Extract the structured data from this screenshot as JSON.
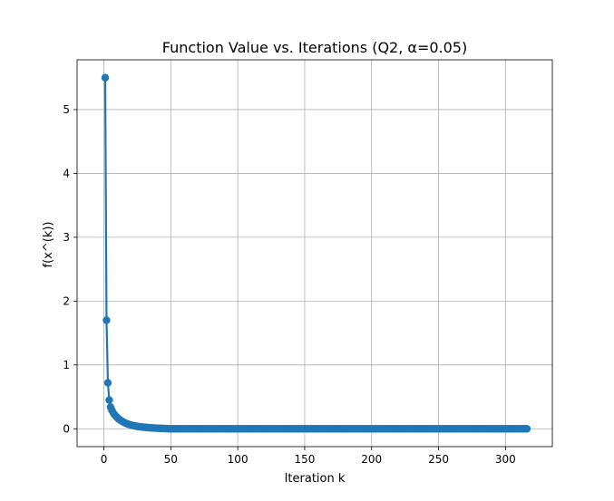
{
  "chart_data": {
    "type": "line",
    "title": "Function Value vs. Iterations (Q2, α=0.05)",
    "xlabel": "Iteration k",
    "ylabel": "f(x^(k))",
    "xlim": [
      -20,
      335
    ],
    "ylim": [
      -0.28,
      5.78
    ],
    "xticks": [
      0,
      50,
      100,
      150,
      200,
      250,
      300
    ],
    "yticks": [
      0,
      1,
      2,
      3,
      4,
      5
    ],
    "grid": true,
    "legend": "none",
    "series": [
      {
        "color": "#1f77b4",
        "markers": true,
        "x_start": 1,
        "x_end": 316,
        "head_values": [
          5.5,
          1.7,
          0.72,
          0.45,
          0.34,
          0.29,
          0.25,
          0.22,
          0.195,
          0.175,
          0.155,
          0.14,
          0.125,
          0.112,
          0.1,
          0.09,
          0.081,
          0.073,
          0.066,
          0.06,
          0.054,
          0.049,
          0.045,
          0.041,
          0.037,
          0.034,
          0.031,
          0.028,
          0.026,
          0.024,
          0.022,
          0.02,
          0.018,
          0.016,
          0.015,
          0.013,
          0.012,
          0.011,
          0.01,
          0.009,
          0.008,
          0.007,
          0.006,
          0.005,
          0.004,
          0.003,
          0.002,
          0.001
        ],
        "tail_value": 0.0
      }
    ]
  }
}
